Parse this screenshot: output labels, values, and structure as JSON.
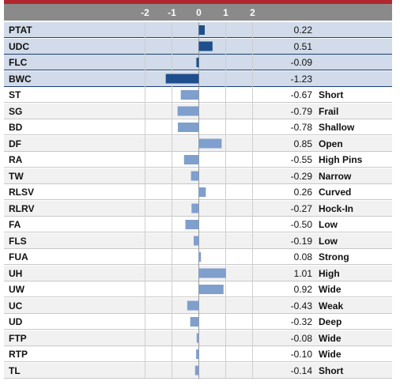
{
  "chart_data": {
    "type": "bar",
    "orientation": "horizontal",
    "title": "",
    "xlabel": "",
    "ylabel": "",
    "xlim": [
      -2.6,
      2.6
    ],
    "x_ticks": [
      "-2",
      "-1",
      "0",
      "1",
      "2"
    ],
    "x_tick_values": [
      -2,
      -1,
      0,
      1,
      2
    ],
    "grid": true,
    "colors": {
      "highlight_bar": "#1f4e8c",
      "normal_bar": "#7f9fcd",
      "header": "#8a8a8a",
      "accent": "#b0272f"
    },
    "rows": [
      {
        "label": "PTAT",
        "value": 0.22,
        "value_text": "0.22",
        "desc": "",
        "highlight": true
      },
      {
        "label": "UDC",
        "value": 0.51,
        "value_text": "0.51",
        "desc": "",
        "highlight": true
      },
      {
        "label": "FLC",
        "value": -0.09,
        "value_text": "-0.09",
        "desc": "",
        "highlight": true
      },
      {
        "label": "BWC",
        "value": -1.23,
        "value_text": "-1.23",
        "desc": "",
        "highlight": true
      },
      {
        "label": "ST",
        "value": -0.67,
        "value_text": "-0.67",
        "desc": "Short",
        "highlight": false
      },
      {
        "label": "SG",
        "value": -0.79,
        "value_text": "-0.79",
        "desc": "Frail",
        "highlight": false
      },
      {
        "label": "BD",
        "value": -0.78,
        "value_text": "-0.78",
        "desc": "Shallow",
        "highlight": false
      },
      {
        "label": "DF",
        "value": 0.85,
        "value_text": "0.85",
        "desc": "Open",
        "highlight": false
      },
      {
        "label": "RA",
        "value": -0.55,
        "value_text": "-0.55",
        "desc": "High Pins",
        "highlight": false
      },
      {
        "label": "TW",
        "value": -0.29,
        "value_text": "-0.29",
        "desc": "Narrow",
        "highlight": false
      },
      {
        "label": "RLSV",
        "value": 0.26,
        "value_text": "0.26",
        "desc": "Curved",
        "highlight": false
      },
      {
        "label": "RLRV",
        "value": -0.27,
        "value_text": "-0.27",
        "desc": "Hock-In",
        "highlight": false
      },
      {
        "label": "FA",
        "value": -0.5,
        "value_text": "-0.50",
        "desc": "Low",
        "highlight": false
      },
      {
        "label": "FLS",
        "value": -0.19,
        "value_text": "-0.19",
        "desc": "Low",
        "highlight": false
      },
      {
        "label": "FUA",
        "value": 0.08,
        "value_text": "0.08",
        "desc": "Strong",
        "highlight": false
      },
      {
        "label": "UH",
        "value": 1.01,
        "value_text": "1.01",
        "desc": "High",
        "highlight": false
      },
      {
        "label": "UW",
        "value": 0.92,
        "value_text": "0.92",
        "desc": "Wide",
        "highlight": false
      },
      {
        "label": "UC",
        "value": -0.43,
        "value_text": "-0.43",
        "desc": "Weak",
        "highlight": false
      },
      {
        "label": "UD",
        "value": -0.32,
        "value_text": "-0.32",
        "desc": "Deep",
        "highlight": false
      },
      {
        "label": "FTP",
        "value": -0.08,
        "value_text": "-0.08",
        "desc": "Wide",
        "highlight": false
      },
      {
        "label": "RTP",
        "value": -0.1,
        "value_text": "-0.10",
        "desc": "Wide",
        "highlight": false
      },
      {
        "label": "TL",
        "value": -0.14,
        "value_text": "-0.14",
        "desc": "Short",
        "highlight": false
      }
    ]
  }
}
